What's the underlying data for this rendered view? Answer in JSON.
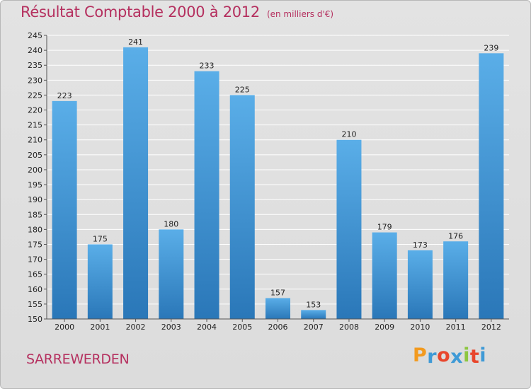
{
  "chart_data": {
    "type": "bar",
    "title": "Résultat Comptable 2000 à 2012",
    "unit": "(en milliers d'€)",
    "categories": [
      "2000",
      "2001",
      "2002",
      "2003",
      "2004",
      "2005",
      "2006",
      "2007",
      "2008",
      "2009",
      "2010",
      "2011",
      "2012"
    ],
    "values": [
      223,
      175,
      241,
      180,
      233,
      225,
      157,
      153,
      210,
      179,
      173,
      176,
      239
    ],
    "ylim": [
      150,
      245
    ],
    "ytick_step": 5,
    "yticks": [
      150,
      155,
      160,
      165,
      170,
      175,
      180,
      185,
      190,
      195,
      200,
      205,
      210,
      215,
      220,
      225,
      230,
      235,
      240,
      245
    ],
    "xlabel": "",
    "ylabel": "",
    "grid": true,
    "bar_color": "#3d8fd2"
  },
  "footer": {
    "commune": "SARREWERDEN",
    "logo_letters": [
      "P",
      "r",
      "o",
      "x",
      "i",
      "t",
      "i"
    ],
    "logo_colors": [
      "#f29a1f",
      "#3f9ad6",
      "#e8462c",
      "#3f9ad6",
      "#8cc63f",
      "#e8462c",
      "#3f9ad6"
    ]
  }
}
